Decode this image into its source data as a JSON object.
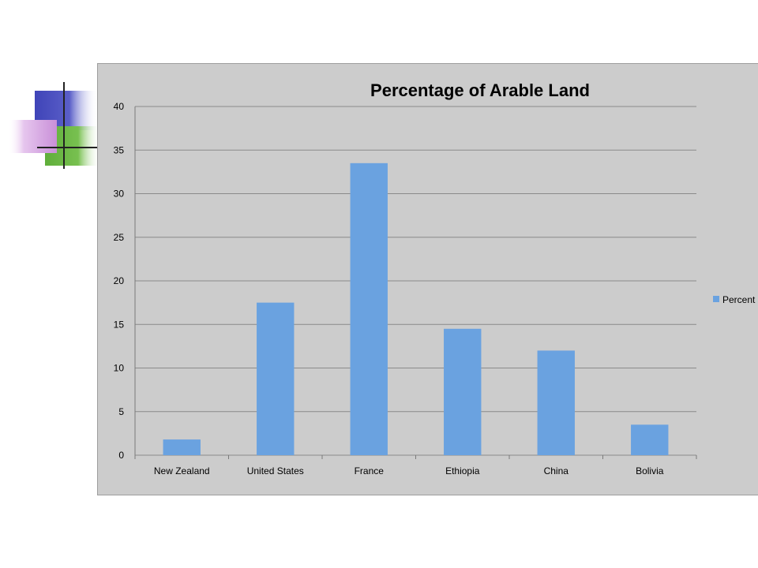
{
  "chart_data": {
    "type": "bar",
    "title": "Percentage of Arable Land",
    "categories": [
      "New Zealand",
      "United States",
      "France",
      "Ethiopia",
      "China",
      "Bolivia"
    ],
    "series": [
      {
        "name": "Percent",
        "values": [
          1.8,
          17.5,
          33.5,
          14.5,
          12.0,
          3.5
        ]
      }
    ],
    "ylim": [
      0,
      40
    ],
    "yticks": [
      "0",
      "5",
      "10",
      "15",
      "20",
      "25",
      "30",
      "35",
      "40"
    ],
    "grid": true,
    "legend": "right",
    "colors": {
      "bar": "#6aa2e0",
      "background": "#cccccc",
      "grid": "#8a8a8a"
    }
  }
}
